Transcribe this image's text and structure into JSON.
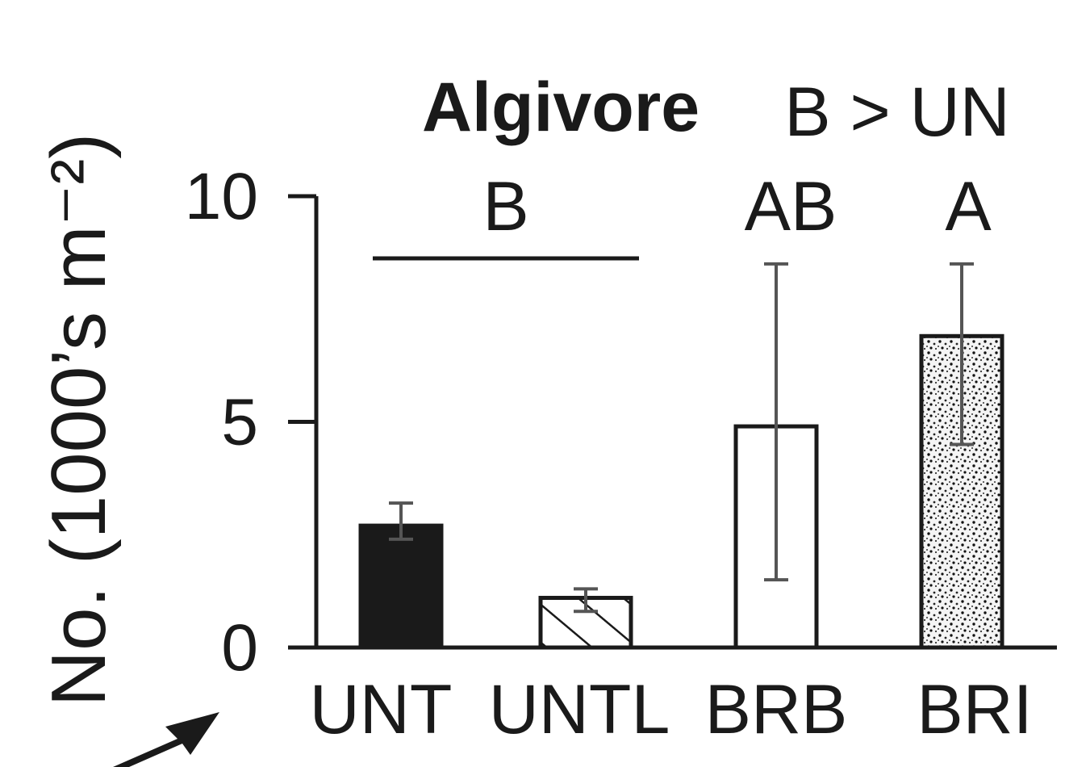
{
  "chart_data": {
    "type": "bar",
    "title": "Algivore",
    "comparison": "B > UN",
    "ylabel": "No. (1000’s m⁻²)",
    "xlabel": "",
    "ylim": [
      0,
      10
    ],
    "yticks": [
      "0",
      "5",
      "10"
    ],
    "grid": false,
    "legend": "none",
    "categories": [
      "UNT",
      "UNTL",
      "BRB",
      "BRI"
    ],
    "series": [
      {
        "values": [
          2.7,
          1.1,
          4.9,
          6.9
        ],
        "error_low": [
          2.4,
          0.8,
          1.5,
          4.5
        ],
        "error_high": [
          3.2,
          1.3,
          8.5,
          8.5
        ],
        "fills": [
          "solid-black",
          "hatched",
          "white",
          "stippled"
        ]
      }
    ],
    "group_labels": [
      {
        "text": "B",
        "categories": [
          "UNT",
          "UNTL"
        ],
        "bracket": true
      },
      {
        "text": "AB",
        "categories": [
          "BRB"
        ],
        "bracket": false
      },
      {
        "text": "A",
        "categories": [
          "BRI"
        ],
        "bracket": false
      }
    ],
    "colors": {
      "ink": "#1a1a1a",
      "whisker": "#555555"
    }
  }
}
